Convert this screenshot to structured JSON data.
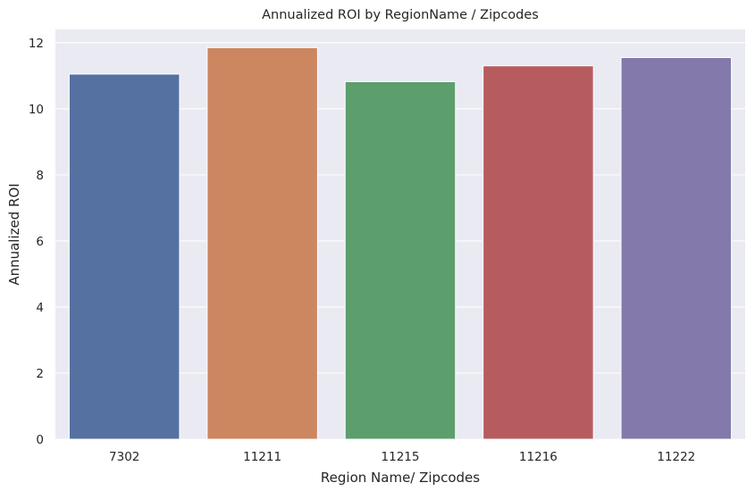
{
  "chart_data": {
    "type": "bar",
    "title": "Annualized ROI by RegionName / Zipcodes",
    "xlabel": "Region Name/ Zipcodes",
    "ylabel": "Annualized ROI",
    "categories": [
      "7302",
      "11211",
      "11215",
      "11216",
      "11222"
    ],
    "values": [
      11.05,
      11.85,
      10.82,
      11.3,
      11.55
    ],
    "ylim": [
      0,
      12.4
    ],
    "yticks": [
      0,
      2,
      4,
      6,
      8,
      10,
      12
    ],
    "grid": true,
    "legend": "none",
    "colors": [
      "#5471a2",
      "#cc8660",
      "#5d9e6d",
      "#b65c5f",
      "#8479ab"
    ],
    "background": "#eaeaf2",
    "gridline_color": "#ffffff"
  }
}
